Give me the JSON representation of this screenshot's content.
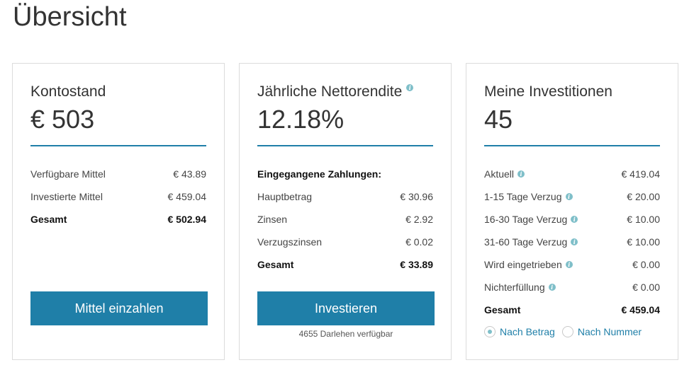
{
  "page": {
    "title": "Übersicht"
  },
  "balance": {
    "title": "Kontostand",
    "value": "€ 503",
    "rows": [
      {
        "label": "Verfügbare Mittel",
        "value": "€ 43.89"
      },
      {
        "label": "Investierte Mittel",
        "value": "€ 459.04"
      },
      {
        "label": "Gesamt",
        "value": "€ 502.94"
      }
    ],
    "button_label": "Mittel einzahlen"
  },
  "return": {
    "title": "Jährliche Nettorendite",
    "value": "12.18%",
    "heading": "Eingegangene Zahlungen:",
    "rows": [
      {
        "label": "Hauptbetrag",
        "value": "€ 30.96"
      },
      {
        "label": "Zinsen",
        "value": "€ 2.92"
      },
      {
        "label": "Verzugszinsen",
        "value": "€ 0.02"
      },
      {
        "label": "Gesamt",
        "value": "€ 33.89"
      }
    ],
    "button_label": "Investieren",
    "note": "4655 Darlehen verfügbar"
  },
  "investments": {
    "title": "Meine Investitionen",
    "value": "45",
    "rows": [
      {
        "label": "Aktuell",
        "value": "€ 419.04"
      },
      {
        "label": "1-15 Tage Verzug",
        "value": "€ 20.00"
      },
      {
        "label": "16-30 Tage Verzug",
        "value": "€ 10.00"
      },
      {
        "label": "31-60 Tage Verzug",
        "value": "€ 10.00"
      },
      {
        "label": "Wird eingetrieben",
        "value": "€ 0.00"
      },
      {
        "label": "Nichterfüllung",
        "value": "€ 0.00"
      },
      {
        "label": "Gesamt",
        "value": "€ 459.04"
      }
    ],
    "sort_options": [
      {
        "label": "Nach Betrag",
        "selected": true
      },
      {
        "label": "Nach Nummer",
        "selected": false
      }
    ]
  },
  "icons": {
    "info": "info-icon",
    "info_glyph": "i"
  },
  "colors": {
    "accent": "#1f7fa8",
    "info": "#7fbfc9",
    "border": "#dcdcdc"
  }
}
